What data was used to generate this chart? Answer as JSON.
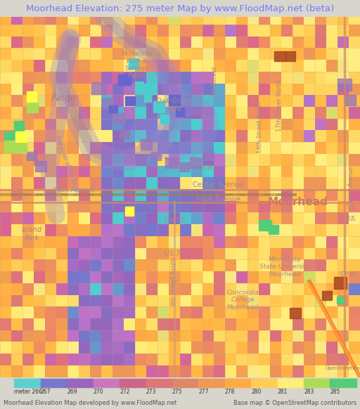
{
  "title": "Moorhead Elevation: 275 meter Map by www.FloodMap.net (beta)",
  "title_color": "#7777ff",
  "title_bg": "#e8e8e4",
  "colorbar_labels": [
    "meter 266",
    "267",
    "269",
    "270",
    "272",
    "273",
    "275",
    "277",
    "278",
    "280",
    "281",
    "283",
    "285"
  ],
  "colorbar_colors": [
    "#5ecfcf",
    "#7777cc",
    "#9966bb",
    "#cc77bb",
    "#cc6688",
    "#dd7777",
    "#dd8866",
    "#ee9955",
    "#ffaa44",
    "#ffcc55",
    "#ffee77",
    "#aadd55",
    "#55cc77"
  ],
  "footer_left": "Moorhead Elevation Map developed by www.FloodMap.net",
  "footer_right": "Base map © OpenStreetMap contributors",
  "bottom_panel_bg": "#d8d5cc",
  "fig_width": 5.12,
  "fig_height": 5.82,
  "seed": 42
}
